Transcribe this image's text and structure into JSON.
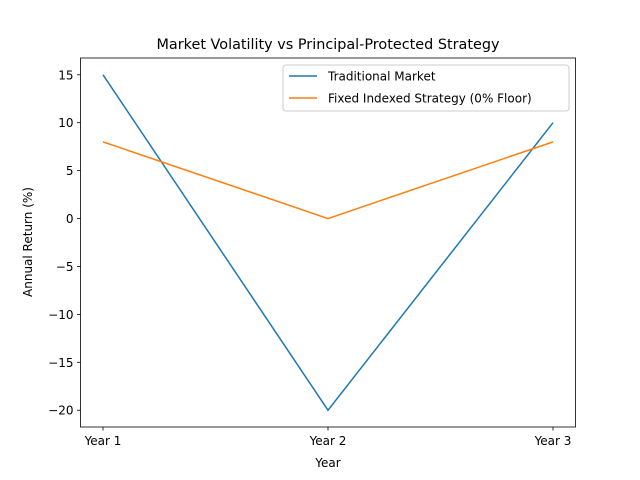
{
  "chart_data": {
    "type": "line",
    "title": "Market Volatility vs Principal-Protected Strategy",
    "xlabel": "Year",
    "ylabel": "Annual Return (%)",
    "categories": [
      "Year 1",
      "Year 2",
      "Year 3"
    ],
    "xlim": [
      -0.1,
      2.1
    ],
    "ylim": [
      -21.75,
      16.75
    ],
    "yticks": [
      -20,
      -15,
      -10,
      -5,
      0,
      5,
      10,
      15
    ],
    "ytick_labels": [
      "−20",
      "−15",
      "−10",
      "−5",
      "0",
      "5",
      "10",
      "15"
    ],
    "grid": false,
    "legend_position": "top-right",
    "series": [
      {
        "name": "Traditional Market",
        "values": [
          15,
          -20,
          10
        ],
        "color": "#1f77b4"
      },
      {
        "name": "Fixed Indexed Strategy (0% Floor)",
        "values": [
          8,
          0,
          8
        ],
        "color": "#ff7f0e"
      }
    ]
  }
}
